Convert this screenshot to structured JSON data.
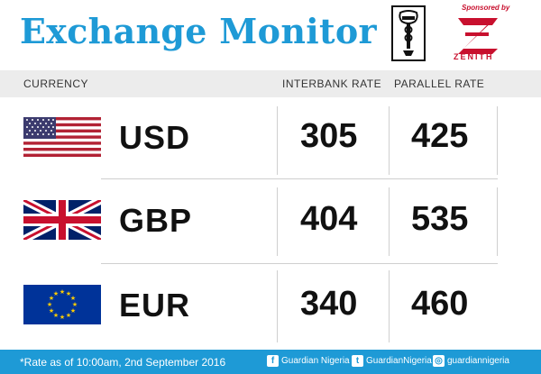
{
  "header": {
    "title": "Exchange Monitor",
    "sponsor_label": "Sponsored by",
    "sponsor_name": "ZENITH"
  },
  "columns": {
    "currency": "CURRENCY",
    "interbank": "INTERBANK RATE",
    "parallel": "PARALLEL RATE"
  },
  "rows": [
    {
      "code": "USD",
      "interbank": "305",
      "parallel": "425",
      "flag": "us-flag-icon"
    },
    {
      "code": "GBP",
      "interbank": "404",
      "parallel": "535",
      "flag": "uk-flag-icon"
    },
    {
      "code": "EUR",
      "interbank": "340",
      "parallel": "460",
      "flag": "eu-flag-icon"
    }
  ],
  "footer": {
    "note": "*Rate as of 10:00am, 2nd September 2016",
    "facebook": "Guardian Nigeria",
    "twitter": "GuardianNigeria",
    "instagram": "guardiannigeria"
  },
  "colors": {
    "accent": "#1e9ad6",
    "zenith_red": "#c8102e"
  }
}
